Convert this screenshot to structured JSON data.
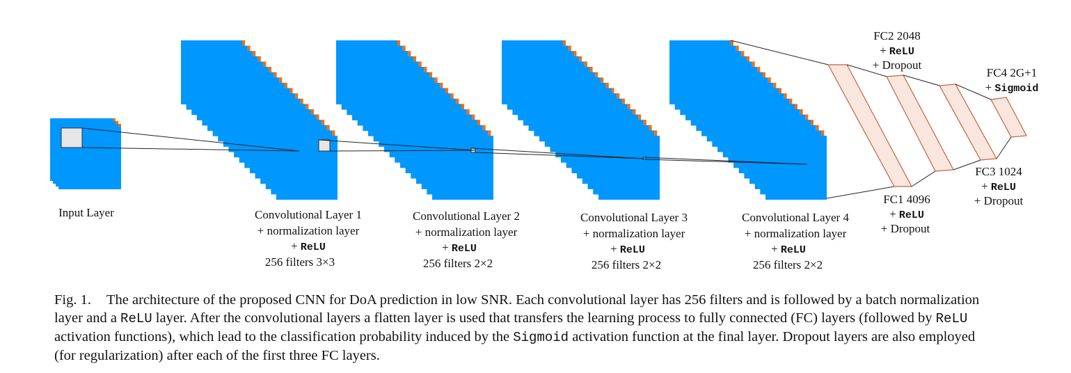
{
  "colors": {
    "blue": "#0097ff",
    "orange": "#ff6a00",
    "kernel_fill": "#e6e6e6",
    "fc_fill": "#f9e6df",
    "fc_stroke": "#c2643f",
    "line": "#222222"
  },
  "input_layer": {
    "label": "Input Layer"
  },
  "conv_layers": [
    {
      "title": "Convolutional Layer 1",
      "norm": "+ normalization layer",
      "act_prefix": "+ ",
      "act": "ReLU",
      "filters": "256 filters 3×3"
    },
    {
      "title": "Convolutional Layer 2",
      "norm": "+ normalization layer",
      "act_prefix": "+ ",
      "act": "ReLU",
      "filters": "256 filters 2×2"
    },
    {
      "title": "Convolutional Layer 3",
      "norm": "+ normalization layer",
      "act_prefix": "+ ",
      "act": "ReLU",
      "filters": "256 filters 2×2"
    },
    {
      "title": "Convolutional Layer 4",
      "norm": "+ normalization layer",
      "act_prefix": "+ ",
      "act": "ReLU",
      "filters": "256 filters 2×2"
    }
  ],
  "fc_layers": [
    {
      "title": "FC1 4096",
      "act_prefix": "+ ",
      "act": "ReLU",
      "extra": "+ Dropout"
    },
    {
      "title": "FC2 2048",
      "act_prefix": "+ ",
      "act": "ReLU",
      "extra": "+ Dropout"
    },
    {
      "title": "FC3 1024",
      "act_prefix": "+ ",
      "act": "ReLU",
      "extra": "+ Dropout"
    },
    {
      "title": "FC4 2G+1",
      "act_prefix": "+ ",
      "act": "Sigmoid",
      "extra": ""
    }
  ],
  "caption": {
    "fig_label": "Fig. 1.",
    "l1": "The architecture of the proposed CNN for DoA prediction in low SNR. Each convolutional layer has 256 filters and is followed by a batch normalization",
    "l2a": "layer and a ",
    "l2code": "ReLU",
    "l2b": " layer. After the convolutional layers a flatten layer is used that transfers the learning process to fully connected (FC) layers (followed by ",
    "l2code2": "ReLU",
    "l3a": "activation functions), which lead to the classification probability induced by the ",
    "l3code": "Sigmoid",
    "l3b": " activation function at the final layer. Dropout layers are also employed",
    "l4": "(for regularization) after each of the first three FC layers."
  }
}
